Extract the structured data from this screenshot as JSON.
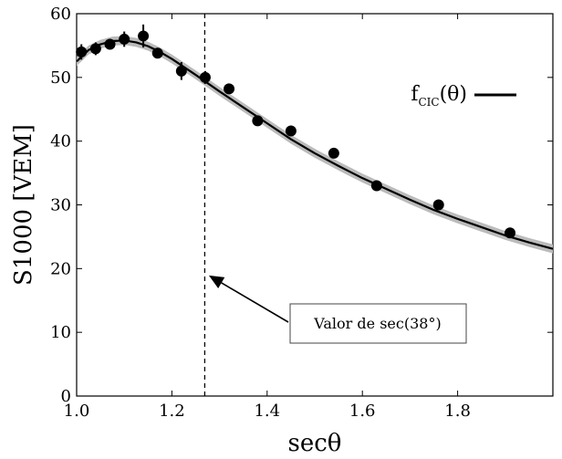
{
  "chart_data": {
    "type": "scatter",
    "xlabel": "secθ",
    "ylabel": "S1000 [VEM]",
    "xlim": [
      1.0,
      2.0
    ],
    "ylim": [
      0,
      60
    ],
    "xticks": [
      1.0,
      1.2,
      1.4,
      1.6,
      1.8
    ],
    "xtick_labels": [
      "1.0",
      "1.2",
      "1.4",
      "1.6",
      "1.8"
    ],
    "yticks": [
      0,
      10,
      20,
      30,
      40,
      50,
      60
    ],
    "ytick_labels": [
      "0",
      "10",
      "20",
      "30",
      "40",
      "50",
      "60"
    ],
    "grid": false,
    "legend_position": "top-right",
    "series": [
      {
        "kind": "points",
        "x": [
          1.01,
          1.04,
          1.07,
          1.1,
          1.14,
          1.17,
          1.22,
          1.27,
          1.32,
          1.38,
          1.45,
          1.54,
          1.63,
          1.76,
          1.91
        ],
        "y": [
          54.0,
          54.5,
          55.2,
          56.0,
          56.5,
          53.8,
          51.0,
          50.0,
          48.2,
          43.2,
          41.6,
          38.1,
          33.0,
          30.0,
          25.6
        ],
        "yerr": [
          1.2,
          1.0,
          0.8,
          1.2,
          1.8,
          0.8,
          1.4,
          1.0,
          0.8,
          0.8,
          0.6,
          0.6,
          0.6,
          0.6,
          0.6
        ],
        "color": "#000000"
      },
      {
        "kind": "fit",
        "name": "f_CIC(θ)",
        "x": [
          1.0,
          1.025,
          1.05,
          1.075,
          1.1,
          1.125,
          1.15,
          1.175,
          1.2,
          1.25,
          1.3,
          1.35,
          1.4,
          1.45,
          1.5,
          1.55,
          1.6,
          1.65,
          1.7,
          1.75,
          1.8,
          1.85,
          1.9,
          1.95,
          2.0
        ],
        "y": [
          52.5,
          54.3,
          55.2,
          55.7,
          55.8,
          55.5,
          54.9,
          54.0,
          52.9,
          50.4,
          47.8,
          45.3,
          42.8,
          40.3,
          38.1,
          36.1,
          34.2,
          32.5,
          30.8,
          29.2,
          27.8,
          26.5,
          25.2,
          24.1,
          23.1
        ],
        "band": 0.7,
        "color": "#000000",
        "band_color": "#bbbbbb"
      }
    ],
    "vline": {
      "x": 1.269,
      "style": "dashed"
    },
    "legend": {
      "main": "f",
      "sub": "CIC",
      "rest": "(θ)"
    },
    "annotation": {
      "text": "Valor de sec(38°)",
      "target_x": 1.27,
      "target_y": 19.5
    }
  }
}
